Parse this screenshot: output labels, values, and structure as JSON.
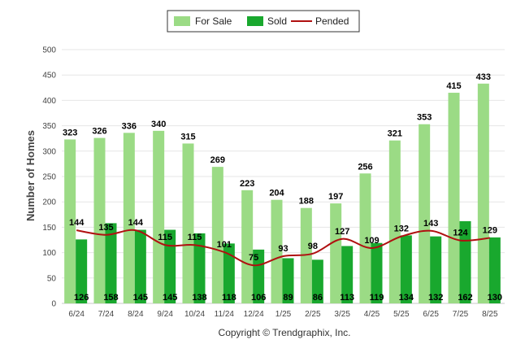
{
  "footer": {
    "copyright": "Copyright © Trendgraphix, Inc."
  },
  "colors": {
    "for_sale": "#9bdb85",
    "sold": "#19a82e",
    "pended": "#b01010",
    "grid": "#e6e6e6"
  },
  "chart_data": {
    "type": "bar",
    "title": "",
    "xlabel": "",
    "ylabel": "Number of Homes",
    "ylim": [
      0,
      500
    ],
    "yticks": [
      0,
      50,
      100,
      150,
      200,
      250,
      300,
      350,
      400,
      450,
      500
    ],
    "legend_position": "top-center",
    "grid": true,
    "categories": [
      "6/24",
      "7/24",
      "8/24",
      "9/24",
      "10/24",
      "11/24",
      "12/24",
      "1/25",
      "2/25",
      "3/25",
      "4/25",
      "5/25",
      "6/25",
      "7/25",
      "8/25"
    ],
    "series": [
      {
        "name": "For Sale",
        "type": "bar",
        "values": [
          323,
          326,
          336,
          340,
          315,
          269,
          223,
          204,
          188,
          197,
          256,
          321,
          353,
          415,
          433
        ]
      },
      {
        "name": "Sold",
        "type": "bar",
        "values": [
          126,
          158,
          145,
          145,
          138,
          118,
          106,
          89,
          86,
          113,
          119,
          134,
          132,
          162,
          130
        ]
      },
      {
        "name": "Pended",
        "type": "line",
        "values": [
          144,
          135,
          144,
          115,
          115,
          101,
          75,
          93,
          98,
          127,
          109,
          132,
          143,
          124,
          129
        ]
      }
    ]
  }
}
